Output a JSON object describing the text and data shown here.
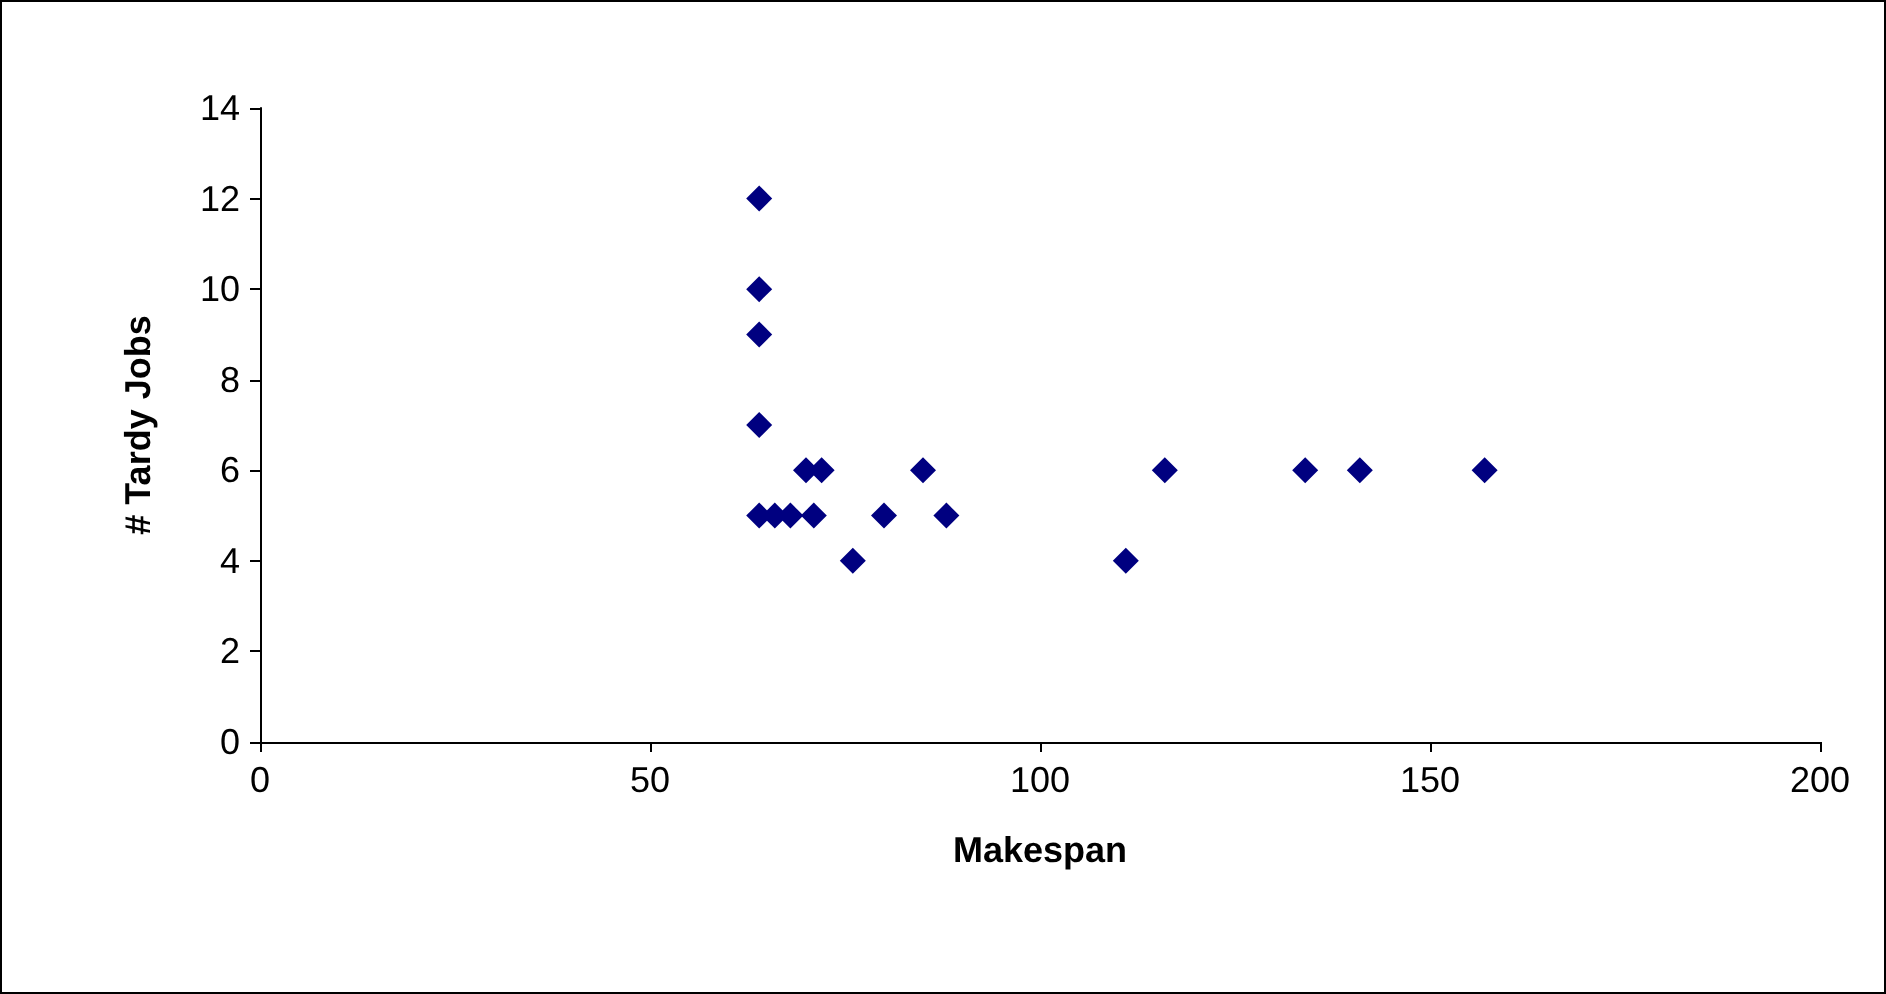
{
  "chart_data": {
    "type": "scatter",
    "xlabel": "Makespan",
    "ylabel": "# Tardy Jobs",
    "x": [
      64,
      64,
      64,
      64,
      64,
      66,
      68,
      71,
      70,
      72,
      76,
      80,
      85,
      88,
      111,
      116,
      134,
      141,
      157
    ],
    "values": [
      12,
      10,
      9,
      7,
      5,
      5,
      5,
      5,
      6,
      6,
      4,
      5,
      6,
      5,
      4,
      6,
      6,
      6,
      6
    ],
    "color": "#000080",
    "marker": "diamond",
    "xlim": [
      0,
      200
    ],
    "xticks": [
      0,
      50,
      100,
      150,
      200
    ],
    "ylim": [
      0,
      14
    ],
    "yticks": [
      0,
      2,
      4,
      6,
      8,
      10,
      12,
      14
    ],
    "grid": false
  }
}
